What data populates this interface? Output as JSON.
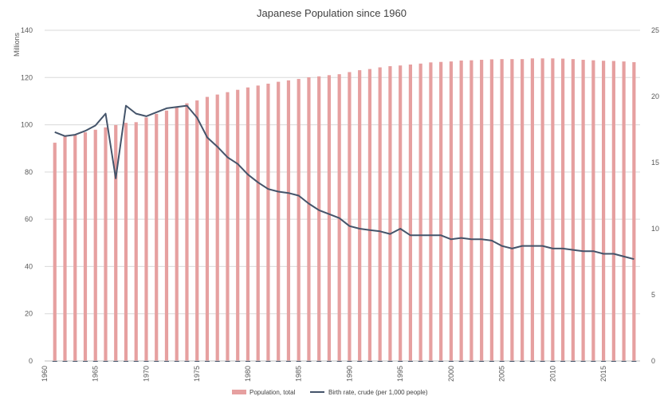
{
  "chart_data": {
    "type": "bar",
    "title": "Japanese Population since 1960",
    "ylabel": "Millions",
    "ylim": [
      0,
      140
    ],
    "y_ticks": [
      "0",
      "20",
      "40",
      "60",
      "80",
      "100",
      "120",
      "140"
    ],
    "y2lim": [
      0,
      25
    ],
    "y2_ticks": [
      "0",
      "5",
      "10",
      "15",
      "20",
      "25"
    ],
    "x_ticks": [
      "1960",
      "1965",
      "1970",
      "1975",
      "1980",
      "1985",
      "1990",
      "1995",
      "2000",
      "2005",
      "2010",
      "2015"
    ],
    "x": [
      1961,
      1962,
      1963,
      1964,
      1965,
      1966,
      1967,
      1968,
      1969,
      1970,
      1971,
      1972,
      1973,
      1974,
      1975,
      1976,
      1977,
      1978,
      1979,
      1980,
      1981,
      1982,
      1983,
      1984,
      1985,
      1986,
      1987,
      1988,
      1989,
      1990,
      1991,
      1992,
      1993,
      1994,
      1995,
      1996,
      1997,
      1998,
      1999,
      2000,
      2001,
      2002,
      2003,
      2004,
      2005,
      2006,
      2007,
      2008,
      2009,
      2010,
      2011,
      2012,
      2013,
      2014,
      2015,
      2016,
      2017,
      2018
    ],
    "legend_position": "bottom",
    "grid": true,
    "series": [
      {
        "name": "Population, total",
        "type": "bar",
        "axis": "left",
        "color": "#e6a0a0",
        "values": [
          92.4,
          95.0,
          95.8,
          96.8,
          97.9,
          98.9,
          99.9,
          100.8,
          101.1,
          103.1,
          104.6,
          106.0,
          107.6,
          109.1,
          110.3,
          111.8,
          112.8,
          113.8,
          114.8,
          115.8,
          116.6,
          117.4,
          118.2,
          118.8,
          119.4,
          120.1,
          120.5,
          121.0,
          121.4,
          122.3,
          123.1,
          123.6,
          124.3,
          124.8,
          125.1,
          125.5,
          125.9,
          126.4,
          126.6,
          126.8,
          127.2,
          127.3,
          127.5,
          127.7,
          127.8,
          127.8,
          127.8,
          128.1,
          128.1,
          128.1,
          128.0,
          127.8,
          127.5,
          127.3,
          127.1,
          127.0,
          126.8,
          126.5
        ]
      },
      {
        "name": "Birth rate, crude (per 1,000 people)",
        "type": "line",
        "axis": "right",
        "color": "#44546a",
        "values": [
          17.3,
          17.0,
          17.1,
          17.4,
          17.8,
          18.7,
          13.8,
          19.3,
          18.7,
          18.5,
          18.8,
          19.1,
          19.2,
          19.3,
          18.4,
          16.9,
          16.2,
          15.4,
          14.9,
          14.1,
          13.5,
          13.0,
          12.8,
          12.7,
          12.5,
          11.9,
          11.4,
          11.1,
          10.8,
          10.2,
          10.0,
          9.9,
          9.8,
          9.6,
          10.0,
          9.5,
          9.5,
          9.5,
          9.5,
          9.2,
          9.3,
          9.2,
          9.2,
          9.1,
          8.7,
          8.5,
          8.7,
          8.7,
          8.7,
          8.5,
          8.5,
          8.4,
          8.3,
          8.3,
          8.1,
          8.1,
          7.9,
          7.7
        ]
      }
    ]
  }
}
